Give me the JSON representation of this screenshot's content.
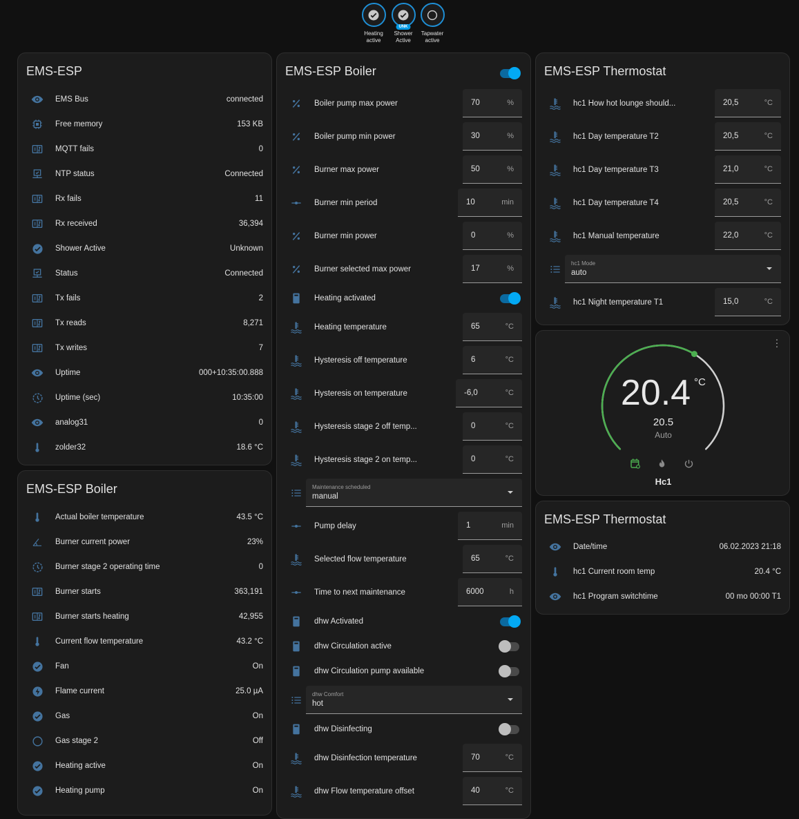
{
  "colors": {
    "icon": "#44739e",
    "accent": "#03a9f4",
    "heat_arc": "#4caf50"
  },
  "badges": [
    {
      "label": "Heating active",
      "icon": "check-circle-icon",
      "state": "on"
    },
    {
      "label": "Shower Active",
      "icon": "check-circle-icon",
      "state": "on",
      "tag": "UNK"
    },
    {
      "label": "Tapwater active",
      "icon": "circle-outline-icon",
      "state": "off"
    }
  ],
  "ems_card": {
    "title": "EMS-ESP",
    "rows": [
      {
        "icon": "eye",
        "label": "EMS Bus",
        "value": "connected"
      },
      {
        "icon": "chip",
        "label": "Free memory",
        "value": "153 KB"
      },
      {
        "icon": "counter",
        "label": "MQTT fails",
        "value": "0"
      },
      {
        "icon": "monitor",
        "label": "NTP status",
        "value": "Connected"
      },
      {
        "icon": "counter",
        "label": "Rx fails",
        "value": "11"
      },
      {
        "icon": "counter",
        "label": "Rx received",
        "value": "36,394"
      },
      {
        "icon": "check",
        "label": "Shower Active",
        "value": "Unknown"
      },
      {
        "icon": "monitor",
        "label": "Status",
        "value": "Connected"
      },
      {
        "icon": "counter",
        "label": "Tx fails",
        "value": "2"
      },
      {
        "icon": "counter",
        "label": "Tx reads",
        "value": "8,271"
      },
      {
        "icon": "counter",
        "label": "Tx writes",
        "value": "7"
      },
      {
        "icon": "eye",
        "label": "Uptime",
        "value": "000+10:35:00.888"
      },
      {
        "icon": "clock",
        "label": "Uptime (sec)",
        "value": "10:35:00"
      },
      {
        "icon": "eye",
        "label": "analog31",
        "value": "0"
      },
      {
        "icon": "thermometer",
        "label": "zolder32",
        "value": "18.6 °C"
      }
    ]
  },
  "boiler_sensors": {
    "title": "EMS-ESP Boiler",
    "rows": [
      {
        "icon": "thermometer",
        "label": "Actual boiler temperature",
        "value": "43.5 °C"
      },
      {
        "icon": "angle",
        "label": "Burner current power",
        "value": "23%"
      },
      {
        "icon": "clock",
        "label": "Burner stage 2 operating time",
        "value": "0"
      },
      {
        "icon": "counter",
        "label": "Burner starts",
        "value": "363,191"
      },
      {
        "icon": "counter",
        "label": "Burner starts heating",
        "value": "42,955"
      },
      {
        "icon": "thermometer",
        "label": "Current flow temperature",
        "value": "43.2 °C"
      },
      {
        "icon": "check",
        "label": "Fan",
        "value": "On"
      },
      {
        "icon": "bolt",
        "label": "Flame current",
        "value": "25.0 µA"
      },
      {
        "icon": "check",
        "label": "Gas",
        "value": "On"
      },
      {
        "icon": "circle",
        "label": "Gas stage 2",
        "value": "Off"
      },
      {
        "icon": "check",
        "label": "Heating active",
        "value": "On"
      },
      {
        "icon": "check",
        "label": "Heating pump",
        "value": "On"
      }
    ]
  },
  "boiler_controls": {
    "title": "EMS-ESP Boiler",
    "header_toggle": true,
    "rows": [
      {
        "type": "number",
        "icon": "percent",
        "label": "Boiler pump max power",
        "value": "70",
        "unit": "%"
      },
      {
        "type": "number",
        "icon": "percent",
        "label": "Boiler pump min power",
        "value": "30",
        "unit": "%"
      },
      {
        "type": "number",
        "icon": "percent",
        "label": "Burner max power",
        "value": "50",
        "unit": "%"
      },
      {
        "type": "number",
        "icon": "slider",
        "label": "Burner min period",
        "value": "10",
        "unit": "min"
      },
      {
        "type": "number",
        "icon": "percent",
        "label": "Burner min power",
        "value": "0",
        "unit": "%"
      },
      {
        "type": "number",
        "icon": "percent",
        "label": "Burner selected max power",
        "value": "17",
        "unit": "%"
      },
      {
        "type": "toggle",
        "icon": "boiler",
        "label": "Heating activated",
        "on": true
      },
      {
        "type": "number",
        "icon": "thermowater",
        "label": "Heating temperature",
        "value": "65",
        "unit": "°C"
      },
      {
        "type": "number",
        "icon": "thermowater",
        "label": "Hysteresis off temperature",
        "value": "6",
        "unit": "°C"
      },
      {
        "type": "number",
        "icon": "thermowater",
        "label": "Hysteresis on temperature",
        "value": "-6,0",
        "unit": "°C"
      },
      {
        "type": "number",
        "icon": "thermowater",
        "label": "Hysteresis stage 2 off temp...",
        "value": "0",
        "unit": "°C"
      },
      {
        "type": "number",
        "icon": "thermowater",
        "label": "Hysteresis stage 2 on temp...",
        "value": "0",
        "unit": "°C"
      },
      {
        "type": "select",
        "icon": "list",
        "label": "Maintenance scheduled",
        "value": "manual"
      },
      {
        "type": "number",
        "icon": "slider",
        "label": "Pump delay",
        "value": "1",
        "unit": "min"
      },
      {
        "type": "number",
        "icon": "thermowater",
        "label": "Selected flow temperature",
        "value": "65",
        "unit": "°C"
      },
      {
        "type": "number",
        "icon": "slider",
        "label": "Time to next maintenance",
        "value": "6000",
        "unit": "h"
      },
      {
        "type": "toggle",
        "icon": "boiler",
        "label": "dhw Activated",
        "on": true
      },
      {
        "type": "toggle",
        "icon": "boiler",
        "label": "dhw Circulation active",
        "on": false
      },
      {
        "type": "toggle",
        "icon": "boiler",
        "label": "dhw Circulation pump available",
        "on": false
      },
      {
        "type": "select",
        "icon": "list",
        "label": "dhw Comfort",
        "value": "hot"
      },
      {
        "type": "toggle",
        "icon": "boiler",
        "label": "dhw Disinfecting",
        "on": false
      },
      {
        "type": "number",
        "icon": "thermowater",
        "label": "dhw Disinfection temperature",
        "value": "70",
        "unit": "°C"
      },
      {
        "type": "number",
        "icon": "thermowater",
        "label": "dhw Flow temperature offset",
        "value": "40",
        "unit": "°C"
      }
    ]
  },
  "thermostat_controls": {
    "title": "EMS-ESP Thermostat",
    "rows": [
      {
        "type": "number",
        "icon": "thermowater",
        "label": "hc1 How hot lounge should...",
        "value": "20,5",
        "unit": "°C"
      },
      {
        "type": "number",
        "icon": "thermowater",
        "label": "hc1 Day temperature T2",
        "value": "20,5",
        "unit": "°C"
      },
      {
        "type": "number",
        "icon": "thermowater",
        "label": "hc1 Day temperature T3",
        "value": "21,0",
        "unit": "°C"
      },
      {
        "type": "number",
        "icon": "thermowater",
        "label": "hc1 Day temperature T4",
        "value": "20,5",
        "unit": "°C"
      },
      {
        "type": "number",
        "icon": "thermowater",
        "label": "hc1 Manual temperature",
        "value": "22,0",
        "unit": "°C"
      },
      {
        "type": "select",
        "icon": "list",
        "label": "hc1 Mode",
        "value": "auto"
      },
      {
        "type": "number",
        "icon": "thermowater",
        "label": "hc1 Night temperature T1",
        "value": "15,0",
        "unit": "°C"
      }
    ]
  },
  "climate": {
    "current": "20.4",
    "unit": "°C",
    "target": "20.5",
    "mode": "Auto",
    "name": "Hc1",
    "target_fraction": 0.615,
    "active_mode": "auto"
  },
  "thermostat_sensors": {
    "title": "EMS-ESP Thermostat",
    "rows": [
      {
        "icon": "eye",
        "label": "Date/time",
        "value": "06.02.2023 21:18"
      },
      {
        "icon": "thermometer",
        "label": "hc1 Current room temp",
        "value": "20.4 °C"
      },
      {
        "icon": "eye",
        "label": "hc1 Program switchtime",
        "value": "00 mo 00:00 T1"
      }
    ]
  }
}
